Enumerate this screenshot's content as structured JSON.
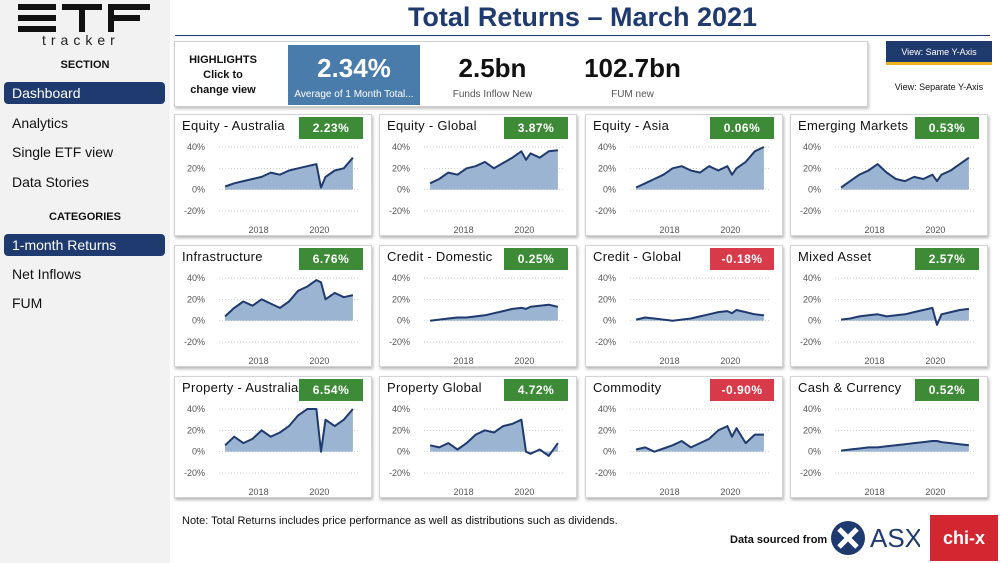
{
  "logo": {
    "word": "tracker"
  },
  "sidebar": {
    "section_heading": "SECTION",
    "section_items": [
      {
        "label": "Dashboard",
        "active": true
      },
      {
        "label": "Analytics",
        "active": false
      },
      {
        "label": "Single ETF view",
        "active": false
      },
      {
        "label": "Data Stories",
        "active": false
      }
    ],
    "categories_heading": "CATEGORIES",
    "category_items": [
      {
        "label": "1-month Returns",
        "active": true
      },
      {
        "label": "Net Inflows",
        "active": false
      },
      {
        "label": "FUM",
        "active": false
      }
    ]
  },
  "page_title": "Total Returns – March 2021",
  "highlights": {
    "label": "HIGHLIGHTS Click to change view",
    "kpi1": {
      "value": "2.34%",
      "caption": "Average of 1 Month Total..."
    },
    "kpi2": {
      "value": "2.5bn",
      "caption": "Funds Inflow New"
    },
    "kpi3": {
      "value": "102.7bn",
      "caption": "FUM new"
    }
  },
  "view_buttons": {
    "same": "View: Same Y-Axis",
    "separate": "View: Separate Y-Axis"
  },
  "colors": {
    "navy": "#1f3a6e",
    "kpi_blue": "#4a7cab",
    "positive": "#3d8b37",
    "negative": "#d73a49",
    "area_fill": "#9bb4d1",
    "line": "#1f3a6e"
  },
  "chart_data": [
    {
      "type": "area",
      "title": "Equity - Australia",
      "badge": "2.23%",
      "badge_status": "positive",
      "y_ticks": [
        "40%",
        "20%",
        "0%",
        "-20%"
      ],
      "x_ticks": [
        "2018",
        "2020"
      ],
      "ylim": [
        -20,
        40
      ],
      "x": [
        2016.9,
        2017.2,
        2017.5,
        2017.8,
        2018.1,
        2018.4,
        2018.7,
        2019.0,
        2019.3,
        2019.6,
        2019.9,
        2020.05,
        2020.2,
        2020.5,
        2020.8,
        2021.1
      ],
      "y": [
        3,
        6,
        8,
        10,
        12,
        16,
        14,
        18,
        20,
        22,
        24,
        2,
        12,
        18,
        20,
        30
      ]
    },
    {
      "type": "area",
      "title": "Equity - Global",
      "badge": "3.87%",
      "badge_status": "positive",
      "y_ticks": [
        "40%",
        "20%",
        "0%",
        "-20%"
      ],
      "x_ticks": [
        "2018",
        "2020"
      ],
      "ylim": [
        -20,
        40
      ],
      "x": [
        2016.9,
        2017.2,
        2017.5,
        2017.8,
        2018.1,
        2018.4,
        2018.7,
        2019.0,
        2019.3,
        2019.6,
        2019.9,
        2020.05,
        2020.2,
        2020.5,
        2020.8,
        2021.1
      ],
      "y": [
        6,
        10,
        16,
        14,
        20,
        22,
        26,
        20,
        25,
        30,
        36,
        28,
        34,
        30,
        36,
        37
      ]
    },
    {
      "type": "area",
      "title": "Equity - Asia",
      "badge": "0.06%",
      "badge_status": "positive",
      "y_ticks": [
        "40%",
        "20%",
        "0%",
        "-20%"
      ],
      "x_ticks": [
        "2018",
        "2020"
      ],
      "ylim": [
        -20,
        40
      ],
      "x": [
        2016.9,
        2017.2,
        2017.5,
        2017.8,
        2018.1,
        2018.4,
        2018.7,
        2019.0,
        2019.3,
        2019.6,
        2019.9,
        2020.05,
        2020.2,
        2020.5,
        2020.8,
        2021.1
      ],
      "y": [
        2,
        6,
        10,
        14,
        20,
        22,
        18,
        16,
        22,
        18,
        22,
        14,
        20,
        26,
        36,
        40
      ]
    },
    {
      "type": "area",
      "title": "Emerging Markets",
      "badge": "0.53%",
      "badge_status": "positive",
      "y_ticks": [
        "40%",
        "20%",
        "0%",
        "-20%"
      ],
      "x_ticks": [
        "2018",
        "2020"
      ],
      "ylim": [
        -20,
        40
      ],
      "x": [
        2016.9,
        2017.2,
        2017.5,
        2017.8,
        2018.1,
        2018.4,
        2018.7,
        2019.0,
        2019.3,
        2019.6,
        2019.9,
        2020.05,
        2020.2,
        2020.5,
        2020.8,
        2021.1
      ],
      "y": [
        2,
        8,
        14,
        18,
        24,
        16,
        10,
        8,
        12,
        10,
        14,
        8,
        14,
        18,
        24,
        30
      ]
    },
    {
      "type": "area",
      "title": "Infrastructure",
      "badge": "6.76%",
      "badge_status": "positive",
      "y_ticks": [
        "40%",
        "20%",
        "0%",
        "-20%"
      ],
      "x_ticks": [
        "2018",
        "2020"
      ],
      "ylim": [
        -20,
        40
      ],
      "x": [
        2016.9,
        2017.2,
        2017.5,
        2017.8,
        2018.1,
        2018.4,
        2018.7,
        2019.0,
        2019.3,
        2019.6,
        2019.9,
        2020.05,
        2020.2,
        2020.5,
        2020.8,
        2021.1
      ],
      "y": [
        4,
        12,
        18,
        14,
        20,
        16,
        12,
        18,
        28,
        32,
        38,
        36,
        20,
        26,
        22,
        24
      ]
    },
    {
      "type": "area",
      "title": "Credit - Domestic",
      "badge": "0.25%",
      "badge_status": "positive",
      "y_ticks": [
        "40%",
        "20%",
        "0%",
        "-20%"
      ],
      "x_ticks": [
        "2018",
        "2020"
      ],
      "ylim": [
        -20,
        40
      ],
      "x": [
        2016.9,
        2017.2,
        2017.5,
        2017.8,
        2018.1,
        2018.4,
        2018.7,
        2019.0,
        2019.3,
        2019.6,
        2019.9,
        2020.05,
        2020.2,
        2020.5,
        2020.8,
        2021.1
      ],
      "y": [
        0,
        1,
        2,
        3,
        3,
        4,
        5,
        7,
        9,
        11,
        12,
        11,
        13,
        14,
        15,
        13
      ]
    },
    {
      "type": "area",
      "title": "Credit - Global",
      "badge": "-0.18%",
      "badge_status": "negative",
      "y_ticks": [
        "40%",
        "20%",
        "0%",
        "-20%"
      ],
      "x_ticks": [
        "2018",
        "2020"
      ],
      "ylim": [
        -20,
        40
      ],
      "x": [
        2016.9,
        2017.2,
        2017.5,
        2017.8,
        2018.1,
        2018.4,
        2018.7,
        2019.0,
        2019.3,
        2019.6,
        2019.9,
        2020.05,
        2020.2,
        2020.5,
        2020.8,
        2021.1
      ],
      "y": [
        1,
        3,
        2,
        1,
        0,
        1,
        2,
        4,
        6,
        8,
        9,
        7,
        10,
        8,
        6,
        5
      ]
    },
    {
      "type": "area",
      "title": "Mixed Asset",
      "badge": "2.57%",
      "badge_status": "positive",
      "y_ticks": [
        "40%",
        "20%",
        "0%",
        "-20%"
      ],
      "x_ticks": [
        "2018",
        "2020"
      ],
      "ylim": [
        -20,
        40
      ],
      "x": [
        2016.9,
        2017.2,
        2017.5,
        2017.8,
        2018.1,
        2018.4,
        2018.7,
        2019.0,
        2019.3,
        2019.6,
        2019.9,
        2020.05,
        2020.2,
        2020.5,
        2020.8,
        2021.1
      ],
      "y": [
        1,
        2,
        4,
        5,
        6,
        4,
        5,
        6,
        8,
        10,
        12,
        -4,
        6,
        8,
        10,
        11
      ]
    },
    {
      "type": "area",
      "title": "Property - Australia",
      "badge": "6.54%",
      "badge_status": "positive",
      "y_ticks": [
        "40%",
        "20%",
        "0%",
        "-20%"
      ],
      "x_ticks": [
        "2018",
        "2020"
      ],
      "ylim": [
        -20,
        40
      ],
      "x": [
        2016.9,
        2017.2,
        2017.5,
        2017.8,
        2018.1,
        2018.4,
        2018.7,
        2019.0,
        2019.3,
        2019.6,
        2019.9,
        2020.05,
        2020.2,
        2020.5,
        2020.8,
        2021.1
      ],
      "y": [
        6,
        14,
        8,
        12,
        20,
        14,
        18,
        24,
        34,
        40,
        40,
        0,
        30,
        24,
        30,
        40
      ]
    },
    {
      "type": "area",
      "title": "Property Global",
      "badge": "4.72%",
      "badge_status": "positive",
      "y_ticks": [
        "40%",
        "20%",
        "0%",
        "-20%"
      ],
      "x_ticks": [
        "2018",
        "2020"
      ],
      "ylim": [
        -20,
        40
      ],
      "x": [
        2016.9,
        2017.2,
        2017.5,
        2017.8,
        2018.1,
        2018.4,
        2018.7,
        2019.0,
        2019.3,
        2019.6,
        2019.9,
        2020.05,
        2020.2,
        2020.5,
        2020.8,
        2021.1
      ],
      "y": [
        6,
        4,
        8,
        2,
        8,
        16,
        20,
        18,
        24,
        26,
        30,
        0,
        -2,
        2,
        -4,
        8
      ]
    },
    {
      "type": "area",
      "title": "Commodity",
      "badge": "-0.90%",
      "badge_status": "negative",
      "y_ticks": [
        "40%",
        "20%",
        "0%",
        "-20%"
      ],
      "x_ticks": [
        "2018",
        "2020"
      ],
      "ylim": [
        -20,
        40
      ],
      "x": [
        2016.9,
        2017.2,
        2017.5,
        2017.8,
        2018.1,
        2018.4,
        2018.7,
        2019.0,
        2019.3,
        2019.6,
        2019.9,
        2020.05,
        2020.2,
        2020.5,
        2020.8,
        2021.1
      ],
      "y": [
        2,
        4,
        0,
        3,
        6,
        10,
        4,
        8,
        12,
        20,
        24,
        14,
        22,
        8,
        16,
        16
      ]
    },
    {
      "type": "area",
      "title": "Cash & Currency",
      "badge": "0.52%",
      "badge_status": "positive",
      "y_ticks": [
        "40%",
        "20%",
        "0%",
        "-20%"
      ],
      "x_ticks": [
        "2018",
        "2020"
      ],
      "ylim": [
        -20,
        40
      ],
      "x": [
        2016.9,
        2017.2,
        2017.5,
        2017.8,
        2018.1,
        2018.4,
        2018.7,
        2019.0,
        2019.3,
        2019.6,
        2019.9,
        2020.05,
        2020.2,
        2020.5,
        2020.8,
        2021.1
      ],
      "y": [
        1,
        2,
        3,
        4,
        4,
        5,
        6,
        7,
        8,
        9,
        10,
        10,
        9,
        8,
        7,
        6
      ]
    }
  ],
  "footnote": "Note: Total Returns includes price performance as well as distributions such as dividends.",
  "data_sourced": "Data sourced from",
  "sources": {
    "asx": "ASX",
    "chix": "chi-x"
  }
}
